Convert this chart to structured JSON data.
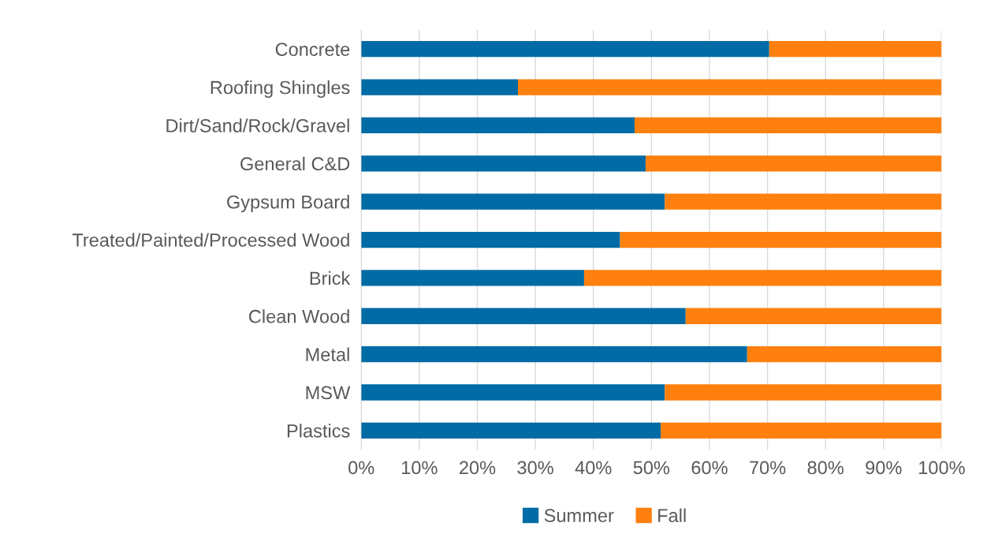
{
  "chart_data": {
    "type": "bar",
    "orientation": "horizontal",
    "stacked": true,
    "categories": [
      "Concrete",
      "Roofing Shingles",
      "Dirt/Sand/Rock/Gravel",
      "General C&D",
      "Gypsum Board",
      "Treated/Painted/Processed Wood",
      "Brick",
      "Clean Wood",
      "Metal",
      "MSW",
      "Plastics"
    ],
    "series": [
      {
        "name": "Summer",
        "color": "#006ba4",
        "values": [
          70.3,
          27.0,
          47.1,
          49.0,
          52.3,
          44.6,
          38.4,
          55.9,
          66.5,
          52.3,
          51.6
        ]
      },
      {
        "name": "Fall",
        "color": "#ff800e",
        "values": [
          29.7,
          73.0,
          52.9,
          51.0,
          47.7,
          55.4,
          61.6,
          44.1,
          33.5,
          47.7,
          48.4
        ]
      }
    ],
    "xlim": [
      0,
      100
    ],
    "xticks": [
      {
        "value": 0,
        "label": "0%"
      },
      {
        "value": 10,
        "label": "10%"
      },
      {
        "value": 20,
        "label": "20%"
      },
      {
        "value": 30,
        "label": "30%"
      },
      {
        "value": 40,
        "label": "40%"
      },
      {
        "value": 50,
        "label": "50%"
      },
      {
        "value": 60,
        "label": "60%"
      },
      {
        "value": 70,
        "label": "70%"
      },
      {
        "value": 80,
        "label": "80%"
      },
      {
        "value": 90,
        "label": "90%"
      },
      {
        "value": 100,
        "label": "100%"
      }
    ],
    "grid": "x",
    "legend": "bottom"
  }
}
